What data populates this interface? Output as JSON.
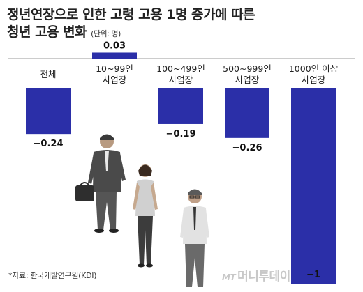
{
  "title_line1": "정년연장으로 인한 고령 고용 1명 증가에 따른",
  "title_line2": "청년 고용 변화",
  "unit": "(단위: 명)",
  "chart_data": {
    "type": "bar",
    "categories": [
      [
        "전체"
      ],
      [
        "10~99인",
        "사업장"
      ],
      [
        "100~499인",
        "사업장"
      ],
      [
        "500~999인",
        "사업장"
      ],
      [
        "1000인 이상",
        "사업장"
      ]
    ],
    "values": [
      -0.24,
      0.03,
      -0.19,
      -0.26,
      -1
    ],
    "value_labels": [
      "−0.24",
      "0.03",
      "−0.19",
      "−0.26",
      "−1"
    ],
    "bar_color": "#2b2fa8",
    "ylim": [
      -1,
      0.03
    ],
    "grid": false,
    "legend": "none",
    "title": "정년연장으로 인한 고령 고용 1명 증가에 따른 청년 고용 변화"
  },
  "source": "*자료: 한국개발연구원(KDI)",
  "logo": {
    "mt": "MT",
    "name": "머니투데이"
  },
  "illustration": "three-business-people"
}
